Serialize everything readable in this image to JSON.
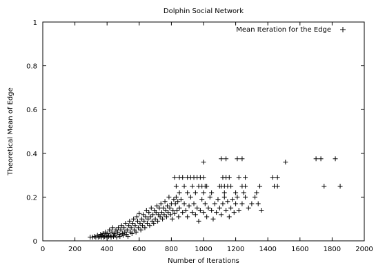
{
  "chart_data": {
    "type": "scatter",
    "title": "Dolphin Social Network",
    "xlabel": "Number of Iterations",
    "ylabel": "Theoretical Mean of Edge",
    "xlim": [
      0,
      2000
    ],
    "ylim": [
      0,
      1
    ],
    "xticks": [
      "0",
      "200",
      "400",
      "600",
      "800",
      "1000",
      "1200",
      "1400",
      "1600",
      "1800",
      "2000"
    ],
    "yticks": [
      "0",
      "0.2",
      "0.4",
      "0.6",
      "0.8",
      "1"
    ],
    "grid": false,
    "legend_position": "top-right",
    "marker": "plus",
    "series": [
      {
        "name": "Mean Iteration for the Edge",
        "points": [
          [
            295,
            0.017
          ],
          [
            310,
            0.017
          ],
          [
            320,
            0.02
          ],
          [
            330,
            0.017
          ],
          [
            340,
            0.025
          ],
          [
            345,
            0.017
          ],
          [
            355,
            0.02
          ],
          [
            360,
            0.03
          ],
          [
            365,
            0.017
          ],
          [
            370,
            0.025
          ],
          [
            375,
            0.033
          ],
          [
            380,
            0.017
          ],
          [
            385,
            0.02
          ],
          [
            390,
            0.04
          ],
          [
            395,
            0.025
          ],
          [
            400,
            0.017
          ],
          [
            405,
            0.033
          ],
          [
            410,
            0.02
          ],
          [
            415,
            0.05
          ],
          [
            420,
            0.025
          ],
          [
            425,
            0.017
          ],
          [
            430,
            0.04
          ],
          [
            435,
            0.06
          ],
          [
            440,
            0.02
          ],
          [
            445,
            0.033
          ],
          [
            450,
            0.025
          ],
          [
            455,
            0.05
          ],
          [
            460,
            0.017
          ],
          [
            465,
            0.04
          ],
          [
            470,
            0.06
          ],
          [
            475,
            0.03
          ],
          [
            480,
            0.02
          ],
          [
            485,
            0.05
          ],
          [
            490,
            0.07
          ],
          [
            495,
            0.033
          ],
          [
            500,
            0.025
          ],
          [
            505,
            0.06
          ],
          [
            510,
            0.04
          ],
          [
            515,
            0.08
          ],
          [
            520,
            0.03
          ],
          [
            525,
            0.05
          ],
          [
            530,
            0.02
          ],
          [
            535,
            0.07
          ],
          [
            540,
            0.09
          ],
          [
            545,
            0.04
          ],
          [
            550,
            0.06
          ],
          [
            555,
            0.033
          ],
          [
            560,
            0.08
          ],
          [
            565,
            0.1
          ],
          [
            570,
            0.05
          ],
          [
            575,
            0.07
          ],
          [
            580,
            0.04
          ],
          [
            585,
            0.11
          ],
          [
            590,
            0.09
          ],
          [
            595,
            0.06
          ],
          [
            600,
            0.125
          ],
          [
            605,
            0.08
          ],
          [
            610,
            0.05
          ],
          [
            615,
            0.1
          ],
          [
            620,
            0.07
          ],
          [
            625,
            0.12
          ],
          [
            630,
            0.09
          ],
          [
            635,
            0.06
          ],
          [
            640,
            0.11
          ],
          [
            645,
            0.14
          ],
          [
            650,
            0.08
          ],
          [
            655,
            0.1
          ],
          [
            660,
            0.13
          ],
          [
            665,
            0.07
          ],
          [
            670,
            0.11
          ],
          [
            675,
            0.15
          ],
          [
            680,
            0.09
          ],
          [
            685,
            0.12
          ],
          [
            690,
            0.08
          ],
          [
            695,
            0.14
          ],
          [
            700,
            0.1
          ],
          [
            705,
            0.13
          ],
          [
            710,
            0.16
          ],
          [
            715,
            0.09
          ],
          [
            720,
            0.12
          ],
          [
            725,
            0.15
          ],
          [
            730,
            0.11
          ],
          [
            735,
            0.17
          ],
          [
            740,
            0.13
          ],
          [
            745,
            0.1
          ],
          [
            750,
            0.15
          ],
          [
            755,
            0.12
          ],
          [
            760,
            0.18
          ],
          [
            765,
            0.14
          ],
          [
            770,
            0.11
          ],
          [
            775,
            0.16
          ],
          [
            780,
            0.13
          ],
          [
            785,
            0.2
          ],
          [
            790,
            0.15
          ],
          [
            795,
            0.12
          ],
          [
            800,
            0.17
          ],
          [
            805,
            0.1
          ],
          [
            810,
            0.14
          ],
          [
            815,
            0.19
          ],
          [
            820,
            0.125
          ],
          [
            825,
            0.17
          ],
          [
            830,
            0.2
          ],
          [
            835,
            0.14
          ],
          [
            840,
            0.18
          ],
          [
            845,
            0.11
          ],
          [
            850,
            0.15
          ],
          [
            860,
            0.19
          ],
          [
            870,
            0.13
          ],
          [
            880,
            0.17
          ],
          [
            890,
            0.14
          ],
          [
            900,
            0.11
          ],
          [
            910,
            0.16
          ],
          [
            920,
            0.2
          ],
          [
            930,
            0.13
          ],
          [
            940,
            0.17
          ],
          [
            950,
            0.12
          ],
          [
            960,
            0.15
          ],
          [
            970,
            0.09
          ],
          [
            980,
            0.14
          ],
          [
            990,
            0.19
          ],
          [
            1000,
            0.13
          ],
          [
            1010,
            0.17
          ],
          [
            1020,
            0.11
          ],
          [
            1030,
            0.15
          ],
          [
            1040,
            0.2
          ],
          [
            1050,
            0.14
          ],
          [
            1060,
            0.1
          ],
          [
            1070,
            0.17
          ],
          [
            1080,
            0.13
          ],
          [
            1090,
            0.19
          ],
          [
            1100,
            0.15
          ],
          [
            1110,
            0.12
          ],
          [
            1120,
            0.17
          ],
          [
            1130,
            0.2
          ],
          [
            1140,
            0.14
          ],
          [
            1150,
            0.18
          ],
          [
            1160,
            0.11
          ],
          [
            1170,
            0.15
          ],
          [
            1180,
            0.19
          ],
          [
            1190,
            0.13
          ],
          [
            1200,
            0.17
          ],
          [
            1210,
            0.2
          ],
          [
            1220,
            0.14
          ],
          [
            1240,
            0.17
          ],
          [
            1260,
            0.2
          ],
          [
            1280,
            0.15
          ],
          [
            1300,
            0.17
          ],
          [
            1320,
            0.2
          ],
          [
            1340,
            0.17
          ],
          [
            1360,
            0.14
          ],
          [
            820,
            0.29
          ],
          [
            850,
            0.29
          ],
          [
            870,
            0.29
          ],
          [
            900,
            0.29
          ],
          [
            920,
            0.29
          ],
          [
            940,
            0.29
          ],
          [
            960,
            0.29
          ],
          [
            980,
            0.29
          ],
          [
            1000,
            0.29
          ],
          [
            1120,
            0.29
          ],
          [
            1140,
            0.29
          ],
          [
            1160,
            0.29
          ],
          [
            1220,
            0.29
          ],
          [
            1260,
            0.29
          ],
          [
            1430,
            0.29
          ],
          [
            1460,
            0.29
          ],
          [
            830,
            0.25
          ],
          [
            880,
            0.25
          ],
          [
            930,
            0.25
          ],
          [
            970,
            0.25
          ],
          [
            990,
            0.25
          ],
          [
            1010,
            0.25
          ],
          [
            1020,
            0.25
          ],
          [
            1100,
            0.25
          ],
          [
            1110,
            0.25
          ],
          [
            1130,
            0.25
          ],
          [
            1150,
            0.25
          ],
          [
            1170,
            0.25
          ],
          [
            1240,
            0.25
          ],
          [
            1260,
            0.25
          ],
          [
            1350,
            0.25
          ],
          [
            1440,
            0.25
          ],
          [
            1460,
            0.25
          ],
          [
            1750,
            0.25
          ],
          [
            1850,
            0.25
          ],
          [
            850,
            0.22
          ],
          [
            900,
            0.22
          ],
          [
            950,
            0.22
          ],
          [
            1000,
            0.22
          ],
          [
            1050,
            0.22
          ],
          [
            1130,
            0.22
          ],
          [
            1200,
            0.22
          ],
          [
            1250,
            0.22
          ],
          [
            1330,
            0.22
          ],
          [
            1000,
            0.36
          ],
          [
            1110,
            0.375
          ],
          [
            1140,
            0.375
          ],
          [
            1210,
            0.375
          ],
          [
            1240,
            0.375
          ],
          [
            1510,
            0.36
          ],
          [
            1700,
            0.375
          ],
          [
            1730,
            0.375
          ],
          [
            1820,
            0.375
          ]
        ]
      }
    ]
  }
}
